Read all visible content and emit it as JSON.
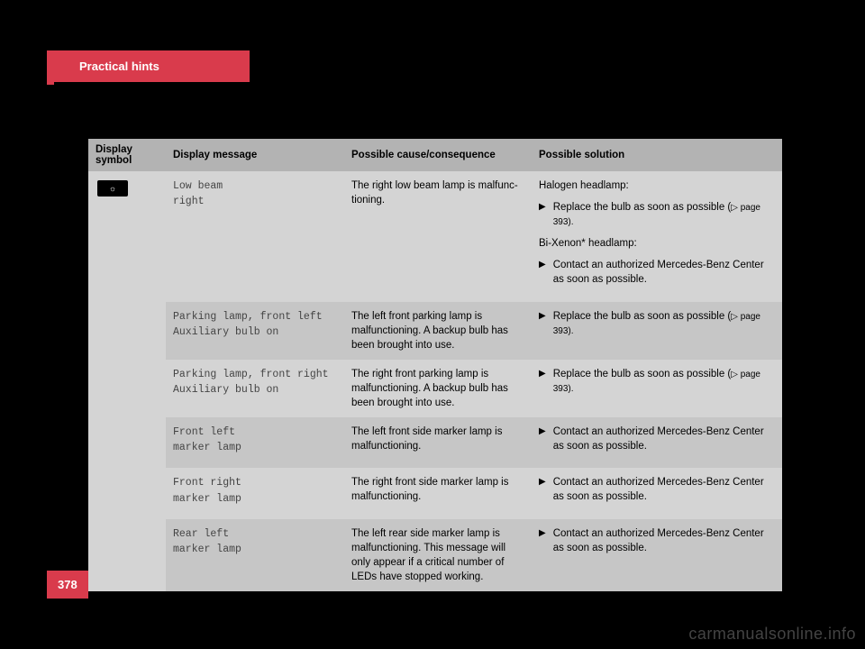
{
  "header": {
    "tab_label": "Practical hints",
    "tab_bg": "#d93b4c",
    "tab_color": "#ffffff"
  },
  "table": {
    "columns": [
      "Display symbol",
      "Display message",
      "Possible cause/consequence",
      "Possible solution"
    ],
    "header_bg": "#b3b3b3",
    "row_light_bg": "#d4d4d4",
    "row_dark_bg": "#c6c6c6",
    "symbol_icon": "☼",
    "rows": [
      {
        "message_line1": "Low beam",
        "message_line2": "right",
        "cause": "The right low beam lamp is malfunc-tioning.",
        "solution_heading1": "Halogen headlamp:",
        "solution_bullet1": "Replace the bulb as soon as possible (",
        "solution_pageref1": "▷ page 393).",
        "solution_heading2": "Bi-Xenon* headlamp:",
        "solution_bullet2": "Contact an authorized Mercedes-Benz Center as soon as possible."
      },
      {
        "message_line1": "Parking lamp, front left",
        "message_line2": "Auxiliary bulb on",
        "cause": "The left front parking lamp is malfunctioning. A backup bulb has been brought into use.",
        "solution_bullet1": "Replace the bulb as soon as possible (",
        "solution_pageref1": "▷ page 393)."
      },
      {
        "message_line1": "Parking lamp, front right",
        "message_line2": "Auxiliary bulb on",
        "cause": "The right front parking lamp is malfunctioning. A backup bulb has been brought into use.",
        "solution_bullet1": "Replace the bulb as soon as possible (",
        "solution_pageref1": "▷ page 393)."
      },
      {
        "message_line1": "Front left",
        "message_line2": "marker lamp",
        "cause": "The left front side marker lamp is malfunctioning.",
        "solution_bullet1": "Contact an authorized Mercedes-Benz Center as soon as possible."
      },
      {
        "message_line1": "Front right",
        "message_line2": "marker lamp",
        "cause": "The right front side marker lamp is malfunctioning.",
        "solution_bullet1": "Contact an authorized Mercedes-Benz Center as soon as possible."
      },
      {
        "message_line1": "Rear left",
        "message_line2": "marker lamp",
        "cause": "The left rear side marker lamp is malfunctioning. This message will only appear if a critical number of LEDs have stopped working.",
        "solution_bullet1": "Contact an authorized Mercedes-Benz Center as soon as possible."
      }
    ]
  },
  "footer": {
    "page_number": "378",
    "watermark": "carmanualsonline.info"
  }
}
